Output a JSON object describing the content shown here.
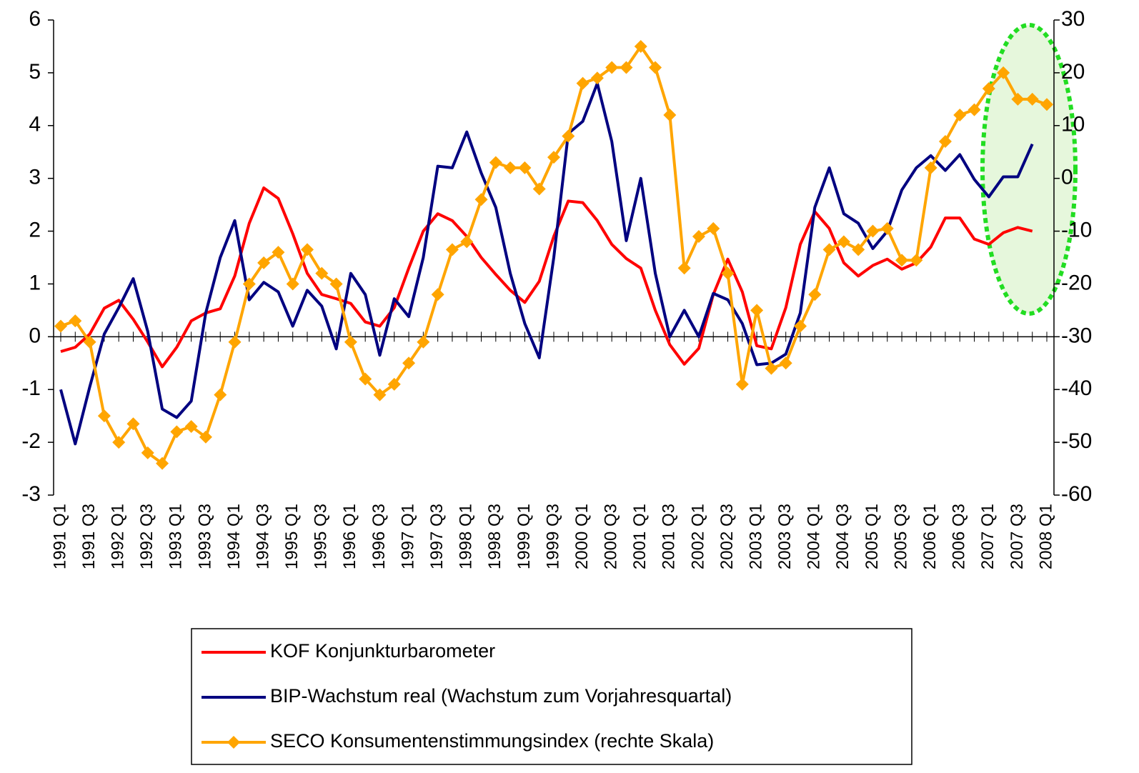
{
  "chart_data": {
    "type": "line",
    "categories": [
      "1991 Q1",
      null,
      "1991 Q3",
      null,
      "1992 Q1",
      null,
      "1992 Q3",
      null,
      "1993 Q1",
      null,
      "1993 Q3",
      null,
      "1994 Q1",
      null,
      "1994 Q3",
      null,
      "1995 Q1",
      null,
      "1995 Q3",
      null,
      "1996 Q1",
      null,
      "1996 Q3",
      null,
      "1997 Q1",
      null,
      "1997 Q3",
      null,
      "1998 Q1",
      null,
      "1998 Q3",
      null,
      "1999 Q1",
      null,
      "1999 Q3",
      null,
      "2000 Q1",
      null,
      "2000 Q3",
      null,
      "2001 Q1",
      null,
      "2001 Q3",
      null,
      "2002 Q1",
      null,
      "2002 Q3",
      null,
      "2003 Q1",
      null,
      "2003 Q3",
      null,
      "2004 Q1",
      null,
      "2004 Q3",
      null,
      "2005 Q1",
      null,
      "2005 Q3",
      null,
      "2006 Q1",
      null,
      "2006 Q3",
      null,
      "2007 Q1",
      null,
      "2007 Q3",
      null,
      "2008 Q1"
    ],
    "series": [
      {
        "name": "KOF Konjunkturbarometer",
        "color": "#ff0000",
        "values": [
          -0.28,
          -0.2,
          0.05,
          0.54,
          0.69,
          0.33,
          -0.1,
          -0.57,
          -0.2,
          0.3,
          0.45,
          0.53,
          1.15,
          2.15,
          2.82,
          2.62,
          1.95,
          1.2,
          0.8,
          0.72,
          0.63,
          0.28,
          0.2,
          0.55,
          1.3,
          2.0,
          2.33,
          2.2,
          1.9,
          1.5,
          1.18,
          0.88,
          0.65,
          1.05,
          1.9,
          2.57,
          2.54,
          2.2,
          1.75,
          1.48,
          1.3,
          0.5,
          -0.15,
          -0.52,
          -0.22,
          0.8,
          1.47,
          0.85,
          -0.17,
          -0.23,
          0.55,
          1.75,
          2.37,
          2.05,
          1.4,
          1.15,
          1.35,
          1.47,
          1.28,
          1.4,
          1.7,
          2.25,
          2.25,
          1.85,
          1.75,
          1.97,
          2.07,
          2.0,
          null
        ]
      },
      {
        "name": "BIP-Wachstum real (Wachstum zum Vorjahresquartal)",
        "color": "#000080",
        "values": [
          -1.0,
          -2.03,
          -0.95,
          0.05,
          0.55,
          1.1,
          0.1,
          -1.37,
          -1.53,
          -1.22,
          0.45,
          1.5,
          2.2,
          0.7,
          1.03,
          0.85,
          0.2,
          0.88,
          0.58,
          -0.23,
          1.2,
          0.8,
          -0.35,
          0.72,
          0.38,
          1.5,
          3.23,
          3.2,
          3.88,
          3.1,
          2.45,
          1.2,
          0.25,
          -0.4,
          1.5,
          3.85,
          4.08,
          4.8,
          3.7,
          1.82,
          3.0,
          1.2,
          0.0,
          0.5,
          0.0,
          0.82,
          0.7,
          0.25,
          -0.53,
          -0.5,
          -0.33,
          0.45,
          2.45,
          3.2,
          2.33,
          2.15,
          1.67,
          2.0,
          2.78,
          3.2,
          3.43,
          3.15,
          3.45,
          2.98,
          2.65,
          3.03,
          3.03,
          3.65,
          null
        ]
      },
      {
        "name": "SECO Konsumentenstimmungsindex (rechte Skala)",
        "color": "#ffa500",
        "axis": "y2",
        "values": [
          -28,
          -27,
          -31,
          -45,
          -50,
          -46.5,
          -52,
          -54,
          -48,
          -47,
          -49,
          -41,
          -31,
          -20,
          -16,
          -14,
          -20,
          -13.5,
          -18,
          -20,
          -31,
          -38,
          -41,
          -39,
          -35,
          -31,
          -22,
          -13.5,
          -12,
          -4,
          3,
          2,
          2,
          -2,
          4,
          8,
          18,
          19,
          21,
          21,
          25,
          21,
          12,
          -17,
          -11,
          -9.5,
          -18,
          -39,
          -25,
          -36,
          -35,
          -28,
          -22,
          -13.5,
          -12,
          -13.5,
          -10,
          -9.5,
          -15.5,
          -15.5,
          2,
          7,
          12,
          13,
          17,
          20,
          15,
          15,
          14
        ]
      }
    ],
    "ylim": [
      -3,
      6
    ],
    "yticks": [
      -3,
      -2,
      -1,
      0,
      1,
      2,
      3,
      4,
      5,
      6
    ],
    "y2lim": [
      -60,
      30
    ],
    "y2ticks": [
      -60,
      -50,
      -40,
      -30,
      -20,
      -10,
      0,
      10,
      20,
      30
    ],
    "legend": "bottom"
  }
}
